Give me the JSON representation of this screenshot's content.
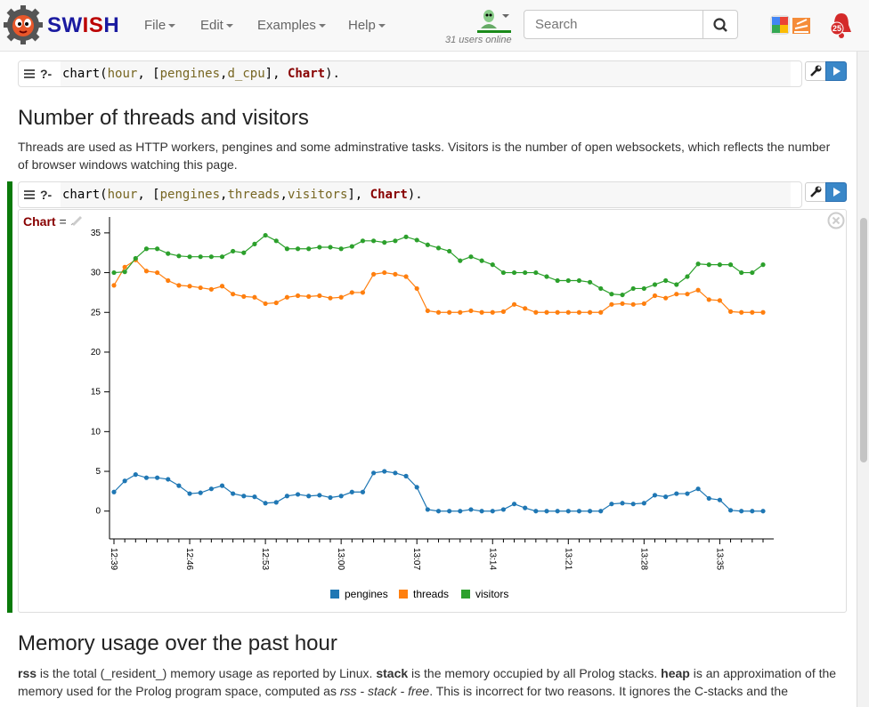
{
  "app": {
    "brand_prefix": "SW",
    "brand_highlight": "IS",
    "brand_suffix": "H"
  },
  "menu": [
    {
      "label": "File"
    },
    {
      "label": "Edit"
    },
    {
      "label": "Examples"
    },
    {
      "label": "Help"
    }
  ],
  "users_online": "31 users online",
  "search": {
    "placeholder": "Search"
  },
  "notifications": {
    "count": "25"
  },
  "query1": {
    "prompt": "?-",
    "pred": "chart",
    "args": [
      "hour",
      "pengines",
      "d_cpu",
      "Chart"
    ]
  },
  "section1": {
    "title": "Number of threads and visitors",
    "text": "Threads are used as HTTP workers, pengines and some adminstrative tasks. Visitors is the number of open websockets, which reflects the number of browser windows watching this page."
  },
  "query2": {
    "prompt": "?-",
    "pred": "chart",
    "args": [
      "hour",
      "pengines",
      "threads",
      "visitors",
      "Chart"
    ]
  },
  "answer": {
    "var": "Chart",
    "eq": "="
  },
  "section2": {
    "title": "Memory usage over the past hour",
    "text_parts": [
      {
        "t": "rss",
        "b": true
      },
      {
        "t": " is the total (_resident_) memory usage as reported by Linux. ",
        "b": false
      },
      {
        "t": "stack",
        "b": true
      },
      {
        "t": " is the memory occupied by all Prolog stacks. ",
        "b": false
      },
      {
        "t": "heap",
        "b": true
      },
      {
        "t": " is an approximation of the memory used for the Prolog program space, computed as ",
        "b": false
      },
      {
        "t": "rss - stack - free",
        "i": true
      },
      {
        "t": ". This is incorrect for two reasons. It ignores the C-stacks and the",
        "b": false
      }
    ]
  },
  "chart_data": {
    "type": "line",
    "title": "",
    "xlabel": "",
    "ylabel": "",
    "ylim": [
      -3.5,
      37
    ],
    "yticks": [
      0,
      5,
      10,
      15,
      20,
      25,
      30,
      35
    ],
    "xticks": [
      "12:39",
      "12:46",
      "12:53",
      "13:00",
      "13:07",
      "13:14",
      "13:21",
      "13:28",
      "13:35"
    ],
    "x_minutes_span": [
      0,
      61
    ],
    "legend_position": "bottom",
    "series": [
      {
        "name": "pengines",
        "color": "#1f77b4",
        "values": [
          2.4,
          3.8,
          4.6,
          4.2,
          4.2,
          4.0,
          3.2,
          2.2,
          2.3,
          2.8,
          3.2,
          2.2,
          1.9,
          1.8,
          1.0,
          1.1,
          1.9,
          2.1,
          1.9,
          2.0,
          1.7,
          1.9,
          2.4,
          2.4,
          4.8,
          5.0,
          4.8,
          4.4,
          3.0,
          0.2,
          0.0,
          0.0,
          0.0,
          0.2,
          0.0,
          0.0,
          0.2,
          0.9,
          0.4,
          0.0,
          0.0,
          0.0,
          0.0,
          0.0,
          0.0,
          0.0,
          0.9,
          1.0,
          0.9,
          1.0,
          2.0,
          1.8,
          2.2,
          2.2,
          2.8,
          1.6,
          1.4,
          0.1,
          0.0,
          0.0,
          0.0
        ]
      },
      {
        "name": "threads",
        "color": "#ff7f0e",
        "values": [
          28.4,
          30.7,
          31.6,
          30.2,
          30.0,
          29.0,
          28.4,
          28.3,
          28.1,
          27.9,
          28.3,
          27.3,
          27.0,
          26.9,
          26.1,
          26.2,
          26.9,
          27.1,
          27.0,
          27.1,
          26.8,
          26.9,
          27.5,
          27.5,
          29.8,
          30.0,
          29.8,
          29.5,
          28.0,
          25.2,
          25.0,
          25.0,
          25.0,
          25.2,
          25.0,
          25.0,
          25.1,
          26.0,
          25.5,
          25.0,
          25.0,
          25.0,
          25.0,
          25.0,
          25.0,
          25.0,
          26.0,
          26.1,
          26.0,
          26.1,
          27.1,
          26.8,
          27.3,
          27.3,
          27.8,
          26.6,
          26.5,
          25.1,
          25.0,
          25.0,
          25.0
        ]
      },
      {
        "name": "visitors",
        "color": "#2ca02c",
        "values": [
          30.0,
          30.1,
          31.8,
          33.0,
          33.0,
          32.4,
          32.1,
          32.0,
          32.0,
          32.0,
          32.0,
          32.7,
          32.5,
          33.6,
          34.7,
          34.0,
          33.0,
          33.0,
          33.0,
          33.2,
          33.2,
          33.0,
          33.3,
          34.0,
          34.0,
          33.8,
          34.0,
          34.5,
          34.1,
          33.5,
          33.1,
          32.7,
          31.5,
          32.0,
          31.5,
          31.0,
          30.0,
          30.0,
          30.0,
          30.0,
          29.5,
          29.0,
          29.0,
          29.0,
          28.8,
          28.0,
          27.3,
          27.2,
          28.0,
          28.0,
          28.5,
          29.0,
          28.5,
          29.5,
          31.1,
          31.0,
          31.0,
          31.0,
          30.0,
          30.0,
          31.0
        ]
      }
    ]
  }
}
